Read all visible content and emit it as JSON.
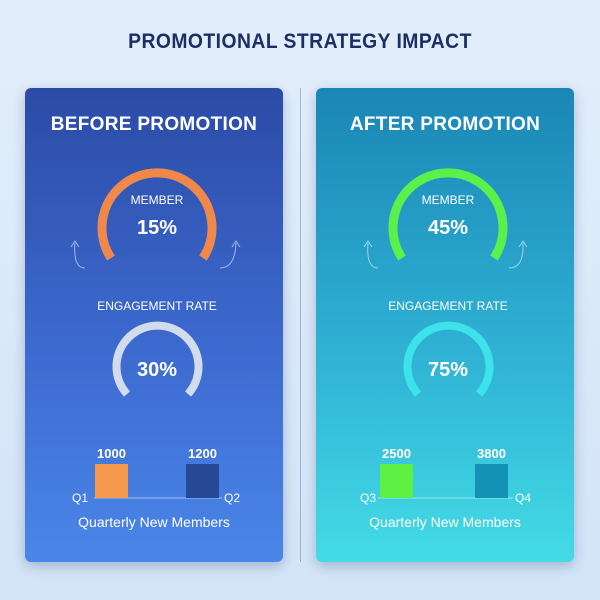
{
  "title": "PROMOTIONAL STRATEGY IMPACT",
  "colors": {
    "before_member_gauge": "#f0884a",
    "before_engagement_gauge": "#d3dcec",
    "after_member_gauge": "#5cf04a",
    "after_engagement_gauge": "#3ce3ea"
  },
  "chart_data": [
    {
      "type": "gauge",
      "title": "BEFORE PROMOTION",
      "gauges": [
        {
          "label": "MEMBER",
          "value": 15,
          "display": "15%"
        },
        {
          "label": "ENGAGEMENT RATE",
          "value": 30,
          "display": "30%"
        }
      ]
    },
    {
      "type": "bar",
      "title": "",
      "xlabel": "Quarterly New Members",
      "categories": [
        "Q1",
        "Q2"
      ],
      "values": [
        1000,
        1200
      ],
      "colors": [
        "#f5994c",
        "#274894"
      ]
    },
    {
      "type": "gauge",
      "title": "AFTER PROMOTION",
      "gauges": [
        {
          "label": "MEMBER",
          "value": 45,
          "display": "45%"
        },
        {
          "label": "ENGAGEMENT RATE",
          "value": 75,
          "display": "75%"
        }
      ]
    },
    {
      "type": "bar",
      "title": "",
      "xlabel": "Quarterly New Members",
      "categories": [
        "Q3",
        "Q4"
      ],
      "values": [
        2500,
        3800
      ],
      "colors": [
        "#5ef043",
        "#1492b6"
      ]
    }
  ]
}
